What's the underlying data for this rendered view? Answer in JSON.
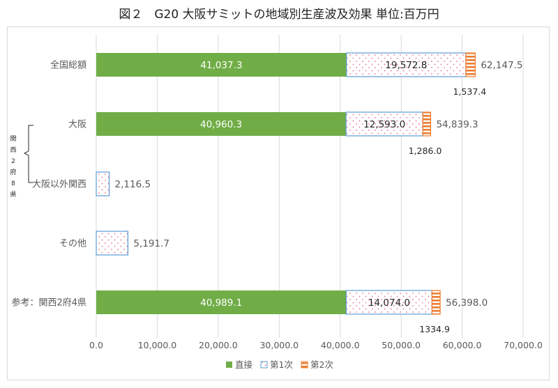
{
  "title": "図２　G20 大阪サミットの地域別生産波及効果 単位:百万円",
  "chart_data": {
    "type": "bar",
    "orientation": "horizontal",
    "stacked": true,
    "categories": [
      "全国総額",
      "大阪",
      "大阪以外関西",
      "その他",
      "参考：関西2府4県"
    ],
    "series": [
      {
        "name": "直接",
        "color": "#70ad47",
        "values": [
          41037.3,
          40960.3,
          0,
          0,
          40989.1
        ],
        "labels": [
          "41,037.3",
          "40,960.3",
          "",
          "",
          "40,989.1"
        ]
      },
      {
        "name": "第1次",
        "color": "#5b9bd5",
        "values": [
          19572.8,
          12593.0,
          2116.5,
          5191.7,
          14074.0
        ],
        "labels": [
          "19,572.8",
          "12,593.0",
          "",
          "",
          "14,074.0"
        ]
      },
      {
        "name": "第2次",
        "color": "#ed7d31",
        "values": [
          1537.4,
          1286.0,
          0,
          0,
          1334.9
        ],
        "labels": [
          "1,537.4",
          "1,286.0",
          "",
          "",
          "1334.9"
        ]
      }
    ],
    "totals": [
      "62,147.5",
      "54,839.3",
      "2,116.5",
      "5,191.7",
      "56,398.0"
    ],
    "xlim": [
      0,
      70000
    ],
    "xticks": [
      "0.0",
      "10,000.0",
      "20,000.0",
      "30,000.0",
      "40,000.0",
      "50,000.0",
      "60,000.0",
      "70,000.0"
    ],
    "grid": true,
    "legend_position": "bottom",
    "bracket_label": [
      "関",
      "西",
      "2",
      "府",
      "8",
      "県"
    ]
  }
}
